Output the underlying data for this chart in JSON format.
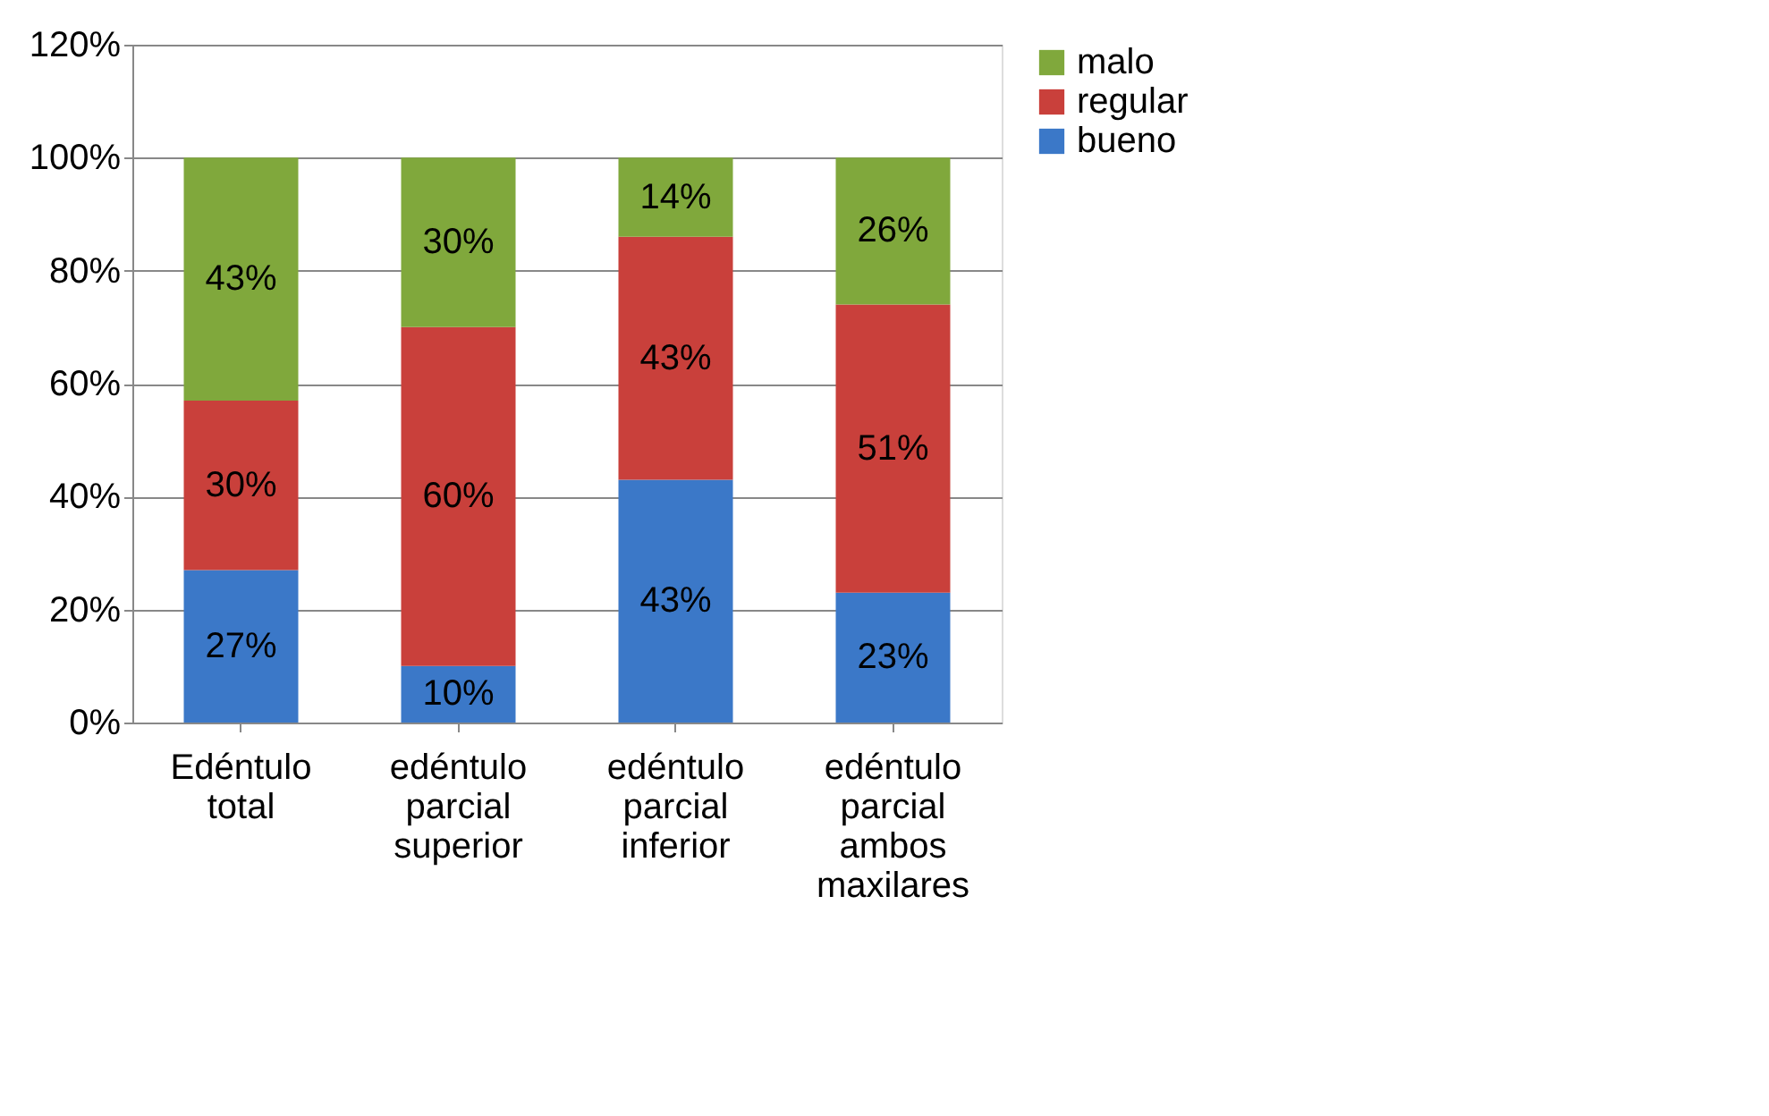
{
  "chart_data": {
    "type": "bar",
    "stacked": true,
    "categories": [
      "Edéntulo total",
      "edéntulo parcial superior",
      "edéntulo parcial inferior",
      "edéntulo parcial ambos maxilares"
    ],
    "series": [
      {
        "name": "bueno",
        "color": "#3b78c8",
        "values": [
          27,
          10,
          43,
          23
        ],
        "value_labels": [
          "27%",
          "10%",
          "43%",
          "23%"
        ]
      },
      {
        "name": "regular",
        "color": "#c9403b",
        "values": [
          30,
          60,
          43,
          51
        ],
        "value_labels": [
          "30%",
          "60%",
          "43%",
          "51%"
        ]
      },
      {
        "name": "malo",
        "color": "#80a83c",
        "values": [
          43,
          30,
          14,
          26
        ],
        "value_labels": [
          "43%",
          "30%",
          "14%",
          "26%"
        ]
      }
    ],
    "ylim": [
      0,
      120
    ],
    "yticks": [
      {
        "value": 0,
        "label": "0%"
      },
      {
        "value": 20,
        "label": "20%"
      },
      {
        "value": 40,
        "label": "40%"
      },
      {
        "value": 60,
        "label": "60%"
      },
      {
        "value": 80,
        "label": "80%"
      },
      {
        "value": 100,
        "label": "100%"
      },
      {
        "value": 120,
        "label": "120%"
      }
    ],
    "grid": "y",
    "legend": "right"
  }
}
